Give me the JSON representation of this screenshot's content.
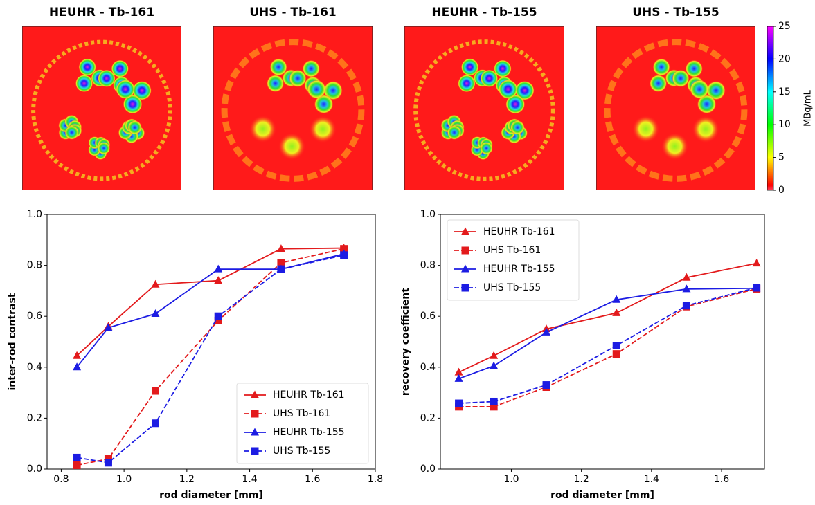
{
  "images": [
    {
      "title": "HEUHR - Tb-161"
    },
    {
      "title": "UHS - Tb-161"
    },
    {
      "title": "HEUHR - Tb-155"
    },
    {
      "title": "UHS - Tb-155"
    }
  ],
  "colorbar": {
    "label": "MBq/mL",
    "lim": [
      0,
      25
    ],
    "ticks": [
      0,
      5,
      10,
      15,
      20,
      25
    ]
  },
  "chart_data": [
    {
      "type": "line",
      "xlabel": "rod diameter [mm]",
      "ylabel": "inter-rod contrast",
      "x": [
        0.85,
        0.95,
        1.1,
        1.3,
        1.5,
        1.7
      ],
      "xlim": [
        0.755,
        1.8
      ],
      "xticks": [
        0.8,
        {
          "value": 1,
          "label": "1.0"
        },
        1.2,
        1.4,
        1.6,
        1.8
      ],
      "ylim": [
        0,
        1
      ],
      "yticks": [
        {
          "value": 0,
          "label": "0.0"
        },
        0.2,
        0.4,
        0.6,
        0.8,
        {
          "value": 1,
          "label": "1.0"
        }
      ],
      "legend": "lower right",
      "series": [
        {
          "name": "HEUHR Tb-161",
          "color": "#e31a1c",
          "dash": "solid",
          "marker": "triangle",
          "values": [
            0.445,
            0.56,
            0.725,
            0.74,
            0.865,
            0.868
          ]
        },
        {
          "name": "UHS Tb-161",
          "color": "#e31a1c",
          "dash": "dashed",
          "marker": "square",
          "values": [
            0.015,
            0.04,
            0.307,
            0.583,
            0.81,
            0.865
          ]
        },
        {
          "name": "HEUHR Tb-155",
          "color": "#1c1ce3",
          "dash": "solid",
          "marker": "triangle",
          "values": [
            0.4,
            0.555,
            0.61,
            0.785,
            0.785,
            0.845
          ]
        },
        {
          "name": "UHS Tb-155",
          "color": "#1c1ce3",
          "dash": "dashed",
          "marker": "square",
          "values": [
            0.045,
            0.025,
            0.18,
            0.6,
            0.785,
            0.84
          ]
        }
      ]
    },
    {
      "type": "line",
      "xlabel": "rod diameter [mm]",
      "ylabel": "recovery coefficient",
      "x": [
        0.85,
        0.95,
        1.1,
        1.3,
        1.5,
        1.7
      ],
      "xlim": [
        0.7975,
        1.7225
      ],
      "xticks": [
        {
          "value": 1,
          "label": "1.0"
        },
        1.2,
        1.4,
        1.6
      ],
      "ylim": [
        0,
        1
      ],
      "yticks": [
        {
          "value": 0,
          "label": "0.0"
        },
        0.2,
        0.4,
        0.6,
        0.8,
        {
          "value": 1,
          "label": "1.0"
        }
      ],
      "legend": "upper left",
      "series": [
        {
          "name": "HEUHR Tb-161",
          "color": "#e31a1c",
          "dash": "solid",
          "marker": "triangle",
          "values": [
            0.38,
            0.445,
            0.55,
            0.613,
            0.752,
            0.808
          ]
        },
        {
          "name": "UHS Tb-161",
          "color": "#e31a1c",
          "dash": "dashed",
          "marker": "square",
          "values": [
            0.245,
            0.245,
            0.322,
            0.452,
            0.638,
            0.708
          ]
        },
        {
          "name": "HEUHR Tb-155",
          "color": "#1c1ce3",
          "dash": "solid",
          "marker": "triangle",
          "values": [
            0.355,
            0.405,
            0.537,
            0.665,
            0.707,
            0.71
          ]
        },
        {
          "name": "UHS Tb-155",
          "color": "#1c1ce3",
          "dash": "dashed",
          "marker": "square",
          "values": [
            0.258,
            0.265,
            0.33,
            0.485,
            0.642,
            0.712
          ]
        }
      ]
    }
  ]
}
